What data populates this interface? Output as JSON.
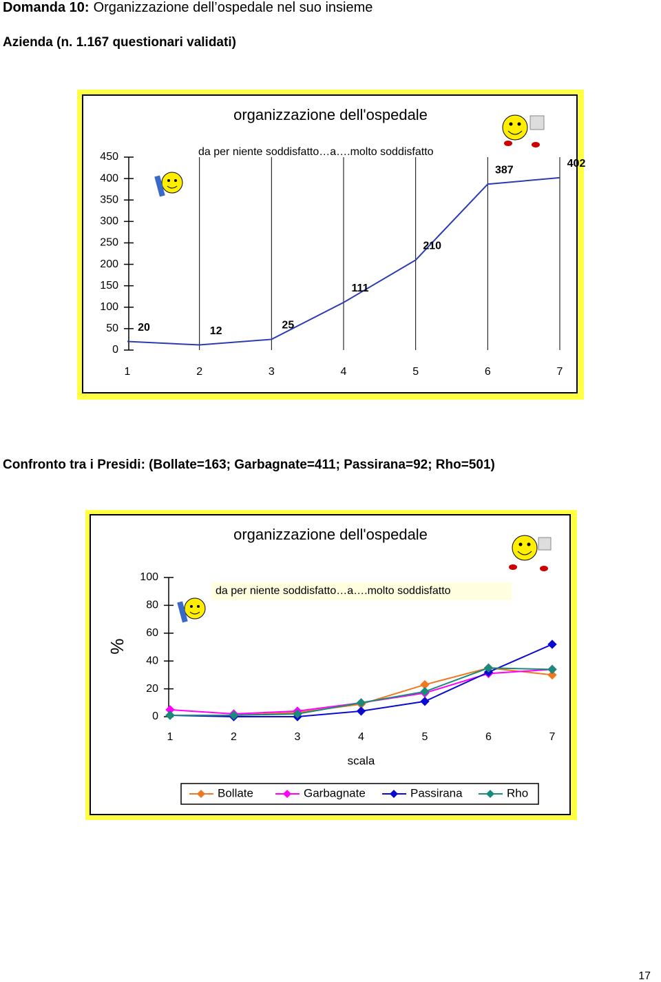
{
  "header": {
    "title_bold": "Domanda 10:",
    "title_rest": "Organizzazione dell’ospedale nel suo insieme",
    "subtitle": "Azienda (n. 1.167 questionari validati)"
  },
  "section2": {
    "title": "Confronto tra i Presidi: (Bollate=163; Garbagnate=411; Passirana=92; Rho=501)"
  },
  "page_number": "17",
  "chart_data": [
    {
      "type": "line",
      "title": "organizzazione dell'ospedale",
      "annotation": "da per niente soddisfatto…a….molto soddisfatto",
      "categories": [
        "1",
        "2",
        "3",
        "4",
        "5",
        "6",
        "7"
      ],
      "values": [
        20,
        12,
        25,
        111,
        210,
        387,
        402
      ],
      "color": "#2b3bb0",
      "ylim": [
        0,
        450
      ],
      "yticks": [
        0,
        50,
        100,
        150,
        200,
        250,
        300,
        350,
        400,
        450
      ],
      "vertical_grid": true
    },
    {
      "type": "line",
      "title": "organizzazione dell'ospedale",
      "annotation": "da per niente soddisfatto…a….molto soddisfatto",
      "ylabel": "%",
      "xlabel": "scala",
      "categories": [
        "1",
        "2",
        "3",
        "4",
        "5",
        "6",
        "7"
      ],
      "series": [
        {
          "name": "Bollate",
          "color": "#f07820",
          "values": [
            1,
            1,
            3,
            9,
            23,
            35,
            30
          ]
        },
        {
          "name": "Garbagnate",
          "color": "#ff00ff",
          "values": [
            5,
            2,
            4,
            10,
            17,
            31,
            34
          ]
        },
        {
          "name": "Passirana",
          "color": "#0a0ad0",
          "values": [
            1,
            0,
            0,
            4,
            11,
            32,
            52
          ]
        },
        {
          "name": "Rho",
          "color": "#1a8a7a",
          "values": [
            1,
            1,
            2,
            10,
            18,
            35,
            34
          ]
        }
      ],
      "ylim": [
        0,
        100
      ],
      "yticks": [
        0,
        20,
        40,
        60,
        80,
        100
      ],
      "legend": "bottom"
    }
  ]
}
